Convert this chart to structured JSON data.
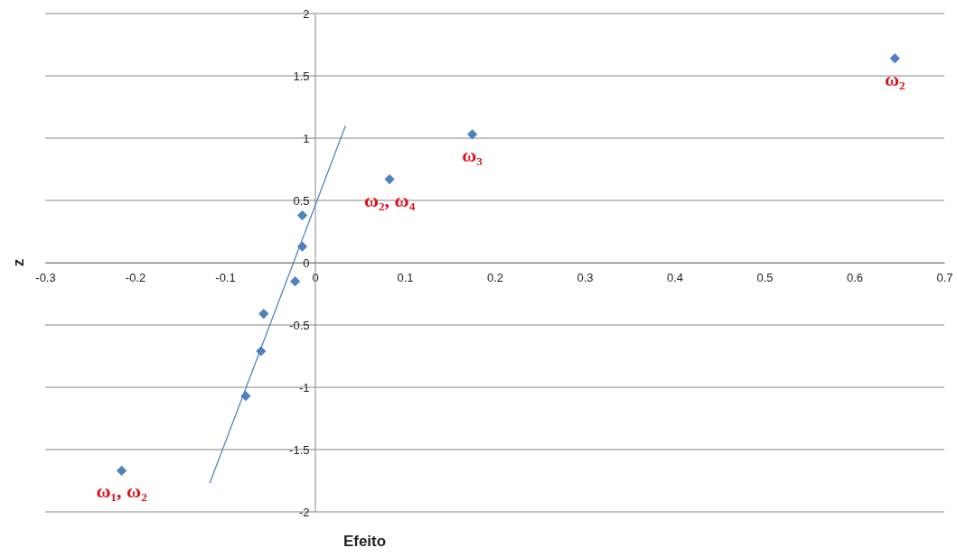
{
  "chart_data": {
    "type": "scatter",
    "xlabel": "Efeito",
    "ylabel": "z",
    "xlim": [
      -0.3,
      0.7
    ],
    "ylim": [
      -2,
      2
    ],
    "xticks": [
      -0.3,
      -0.2,
      -0.1,
      0,
      0.1,
      0.2,
      0.3,
      0.4,
      0.5,
      0.6,
      0.7
    ],
    "yticks": [
      -2,
      -1.5,
      -1,
      -0.5,
      0,
      0.5,
      1,
      1.5,
      2
    ],
    "grid": "y",
    "marker": "diamond",
    "series": [
      {
        "type": "scatter",
        "color": "#4f81bd",
        "x": [
          -0.215,
          -0.077,
          -0.06,
          -0.057,
          -0.022,
          -0.014,
          -0.014,
          0.083,
          0.175,
          0.645
        ],
        "values": [
          -1.67,
          -1.07,
          -0.71,
          -0.41,
          -0.15,
          0.13,
          0.38,
          0.67,
          1.03,
          1.64
        ]
      },
      {
        "type": "line",
        "color": "#4a7ebb",
        "line_style": "solid",
        "marker": "none",
        "x": [
          -0.117,
          0.034
        ],
        "values": [
          -1.77,
          1.1
        ]
      }
    ],
    "annotations": [
      {
        "text": "ω₁, ω₂",
        "x": -0.215,
        "y": -1.67
      },
      {
        "text": "ω₂, ω₄",
        "x": 0.083,
        "y": 0.67
      },
      {
        "text": "ω₃",
        "x": 0.175,
        "y": 1.03
      },
      {
        "text": "ω₂",
        "x": 0.645,
        "y": 1.64
      }
    ]
  }
}
